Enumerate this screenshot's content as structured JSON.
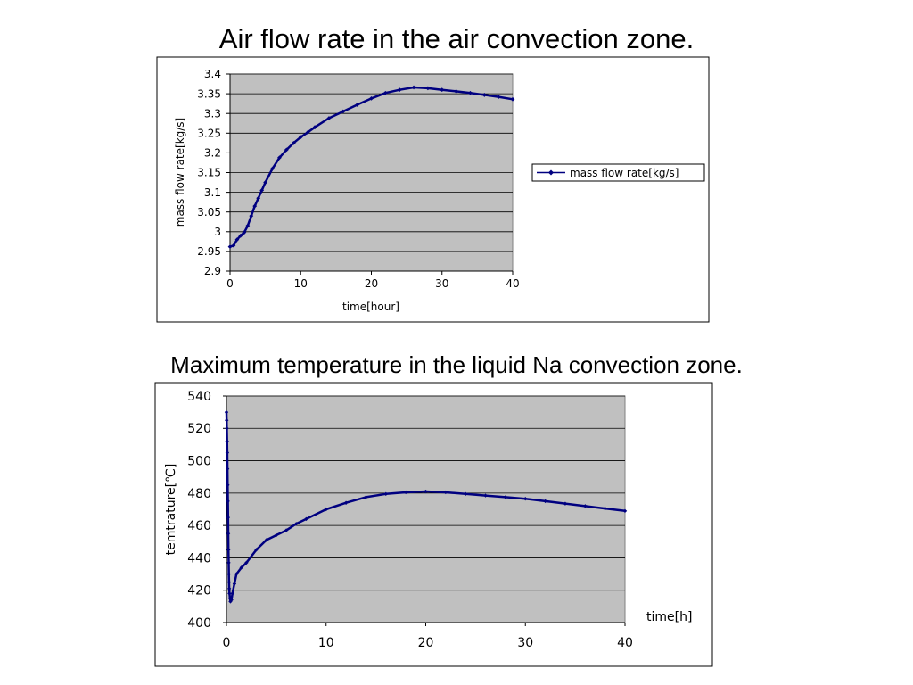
{
  "slide": {
    "title_top": "Air flow rate in the air convection zone.",
    "title_bottom": "Maximum temperature in the liquid Na convection zone."
  },
  "colors": {
    "plot_area": "#c0c0c0",
    "series": "#000080",
    "gridline": "#000000",
    "frame": "#000000"
  },
  "chart_data": [
    {
      "type": "line",
      "title": "",
      "xlabel": "time[hour]",
      "ylabel": "mass flow rate[kg/s]",
      "xlim": [
        0,
        40
      ],
      "ylim": [
        2.9,
        3.4
      ],
      "xticks": [
        0,
        10,
        20,
        30,
        40
      ],
      "xtick_labels": [
        "0",
        "10",
        "20",
        "30",
        "40"
      ],
      "yticks": [
        2.9,
        2.95,
        3.0,
        3.05,
        3.1,
        3.15,
        3.2,
        3.25,
        3.3,
        3.35,
        3.4
      ],
      "ytick_labels": [
        "2.9",
        "2.95",
        "3",
        "3.05",
        "3.1",
        "3.15",
        "3.2",
        "3.25",
        "3.3",
        "3.35",
        "3.4"
      ],
      "grid": "horizontal",
      "legend_position": "right",
      "marker": "diamond",
      "series": [
        {
          "name": "mass flow rate[kg/s]",
          "color": "#000080",
          "x": [
            0,
            0.5,
            1,
            1.5,
            2,
            2.5,
            3,
            3.5,
            4,
            4.5,
            5,
            6,
            7,
            8,
            9,
            10,
            11,
            12,
            14,
            16,
            18,
            20,
            22,
            24,
            26,
            28,
            30,
            32,
            34,
            36,
            38,
            40
          ],
          "y": [
            2.962,
            2.965,
            2.98,
            2.99,
            2.998,
            3.015,
            3.04,
            3.065,
            3.085,
            3.105,
            3.125,
            3.16,
            3.188,
            3.208,
            3.225,
            3.24,
            3.252,
            3.265,
            3.288,
            3.305,
            3.322,
            3.338,
            3.352,
            3.36,
            3.366,
            3.364,
            3.36,
            3.356,
            3.352,
            3.347,
            3.342,
            3.336
          ]
        }
      ]
    },
    {
      "type": "line",
      "title": "",
      "xlabel": "time[h]",
      "ylabel": "temtrature[℃]",
      "xlim": [
        0,
        40
      ],
      "ylim": [
        400,
        540
      ],
      "xticks": [
        0,
        10,
        20,
        30,
        40
      ],
      "xtick_labels": [
        "0",
        "10",
        "20",
        "30",
        "40"
      ],
      "yticks": [
        400,
        420,
        440,
        460,
        480,
        500,
        520,
        540
      ],
      "ytick_labels": [
        "400",
        "420",
        "440",
        "460",
        "480",
        "500",
        "520",
        "540"
      ],
      "grid": "horizontal",
      "legend_position": "none",
      "marker": "diamond",
      "series": [
        {
          "name": "",
          "color": "#000080",
          "x": [
            0,
            0.02,
            0.04,
            0.06,
            0.08,
            0.1,
            0.12,
            0.14,
            0.16,
            0.18,
            0.2,
            0.22,
            0.24,
            0.26,
            0.28,
            0.3,
            0.35,
            0.4,
            0.5,
            0.6,
            0.8,
            1,
            1.5,
            2,
            3,
            4,
            5,
            6,
            7,
            8,
            10,
            12,
            14,
            16,
            18,
            20,
            22,
            24,
            26,
            28,
            30,
            32,
            34,
            36,
            38,
            40
          ],
          "y": [
            530,
            525,
            520,
            512,
            505,
            495,
            485,
            475,
            465,
            455,
            445,
            437,
            430,
            425,
            421,
            418,
            415,
            413,
            414,
            418,
            424,
            430,
            434,
            437,
            445,
            451,
            454,
            457,
            461,
            464,
            470,
            474,
            477.5,
            479.5,
            480.5,
            481,
            480.5,
            479.5,
            478.5,
            477.5,
            476.5,
            475,
            473.5,
            472,
            470.5,
            469
          ]
        }
      ]
    }
  ]
}
